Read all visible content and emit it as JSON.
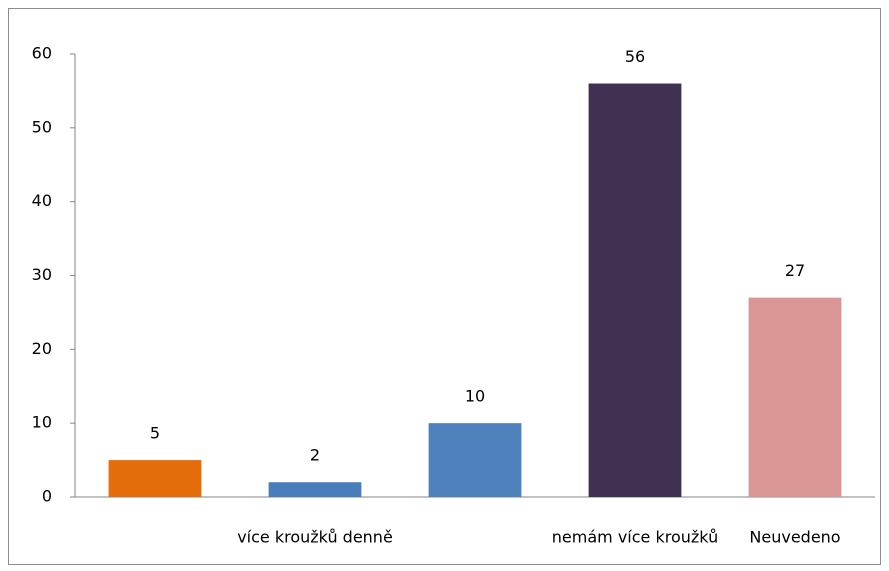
{
  "chart_data": {
    "type": "bar",
    "categories": [
      null,
      "více kroužků denně",
      null,
      "nemám více kroužků",
      "Neuvedeno"
    ],
    "values": [
      5,
      2,
      10,
      56,
      27
    ],
    "colors": [
      "#e46c0a",
      "#4a7ebb",
      "#4f81bd",
      "#403152",
      "#d99694"
    ],
    "ylim": [
      0,
      60
    ],
    "yticks": [
      0,
      10,
      20,
      30,
      40,
      50,
      60
    ],
    "grid": false
  }
}
